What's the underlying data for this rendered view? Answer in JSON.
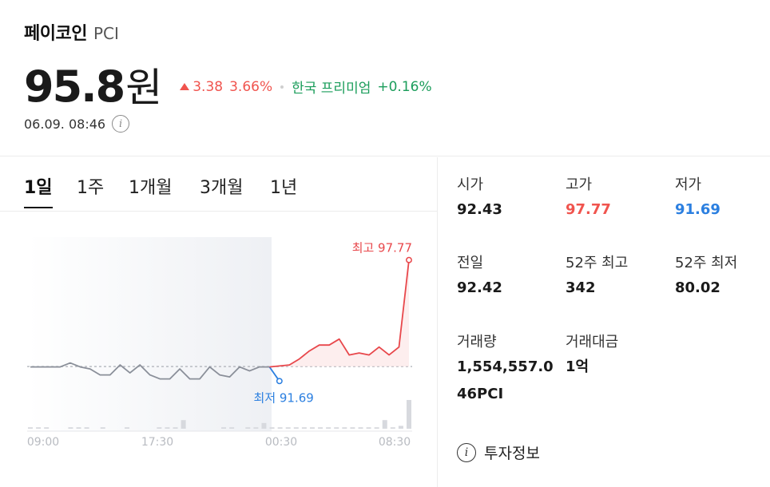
{
  "coin": {
    "name": "페이코인",
    "ticker": "PCI",
    "price": "95.8",
    "unit": "원",
    "change_value": "3.38",
    "change_percent": "3.66%",
    "premium_label": "한국 프리미엄",
    "premium_value": "+0.16%",
    "timestamp": "06.09. 08:46"
  },
  "colors": {
    "up": "#f0544e",
    "down": "#2b7fe0",
    "premium": "#1b9d5b",
    "neutral_line": "#8a8f99"
  },
  "tabs": [
    "1일",
    "1주",
    "1개월",
    "3개월",
    "1년"
  ],
  "active_tab": 0,
  "chart_data": {
    "type": "line",
    "x_ticks": [
      "09:00",
      "17:30",
      "00:30",
      "08:30"
    ],
    "reference_value": 92.42,
    "high_label": "최고 97.77",
    "low_label": "최저 91.69",
    "high": 97.77,
    "low": 91.69,
    "ylim": [
      90.9,
      98.6
    ],
    "segments": [
      {
        "name": "past",
        "color": "#8a8f99",
        "values": [
          92.4,
          92.4,
          92.4,
          92.4,
          92.6,
          92.4,
          92.3,
          92.0,
          92.0,
          92.5,
          92.1,
          92.5,
          92.0,
          91.8,
          91.8,
          92.3,
          91.8,
          91.8,
          92.4,
          92.0,
          91.9,
          92.4,
          92.2,
          92.4,
          92.4
        ]
      },
      {
        "name": "dip",
        "color": "#2b7fe0",
        "values": [
          92.4,
          91.69
        ]
      },
      {
        "name": "recent",
        "color": "#e8474b",
        "values": [
          92.5,
          92.8,
          93.2,
          93.5,
          93.5,
          93.8,
          93.0,
          93.1,
          93.0,
          93.4,
          93.0,
          93.4,
          97.77
        ]
      }
    ],
    "volume": [
      0.05,
      0.05,
      0.05,
      0,
      0,
      0.05,
      0.05,
      0.05,
      0,
      0.05,
      0,
      0,
      0.05,
      0,
      0,
      0,
      0.05,
      0.05,
      0.05,
      0.3,
      0,
      0,
      0,
      0,
      0.05,
      0.05,
      0,
      0.05,
      0.05,
      0.2,
      0.05,
      0.05,
      0.05,
      0.05,
      0.05,
      0.05,
      0.05,
      0.05,
      0.05,
      0.05,
      0.05,
      0.05,
      0.05,
      0.05,
      0.3,
      0.05,
      0.1,
      1.0
    ]
  },
  "stats": {
    "open_label": "시가",
    "open_value": "92.43",
    "high_label": "고가",
    "high_value": "97.77",
    "low_label": "저가",
    "low_value": "91.69",
    "prev_label": "전일",
    "prev_value": "92.42",
    "w52_high_label": "52주 최고",
    "w52_high_value": "342",
    "w52_low_label": "52주 최저",
    "w52_low_value": "80.02",
    "volume_label": "거래량",
    "volume_value_line1": "1,554,557.0",
    "volume_value_line2": "46PCI",
    "amount_label": "거래대금",
    "amount_value": "1억"
  },
  "invest_info": {
    "icon": "info-icon",
    "label": "투자정보"
  }
}
